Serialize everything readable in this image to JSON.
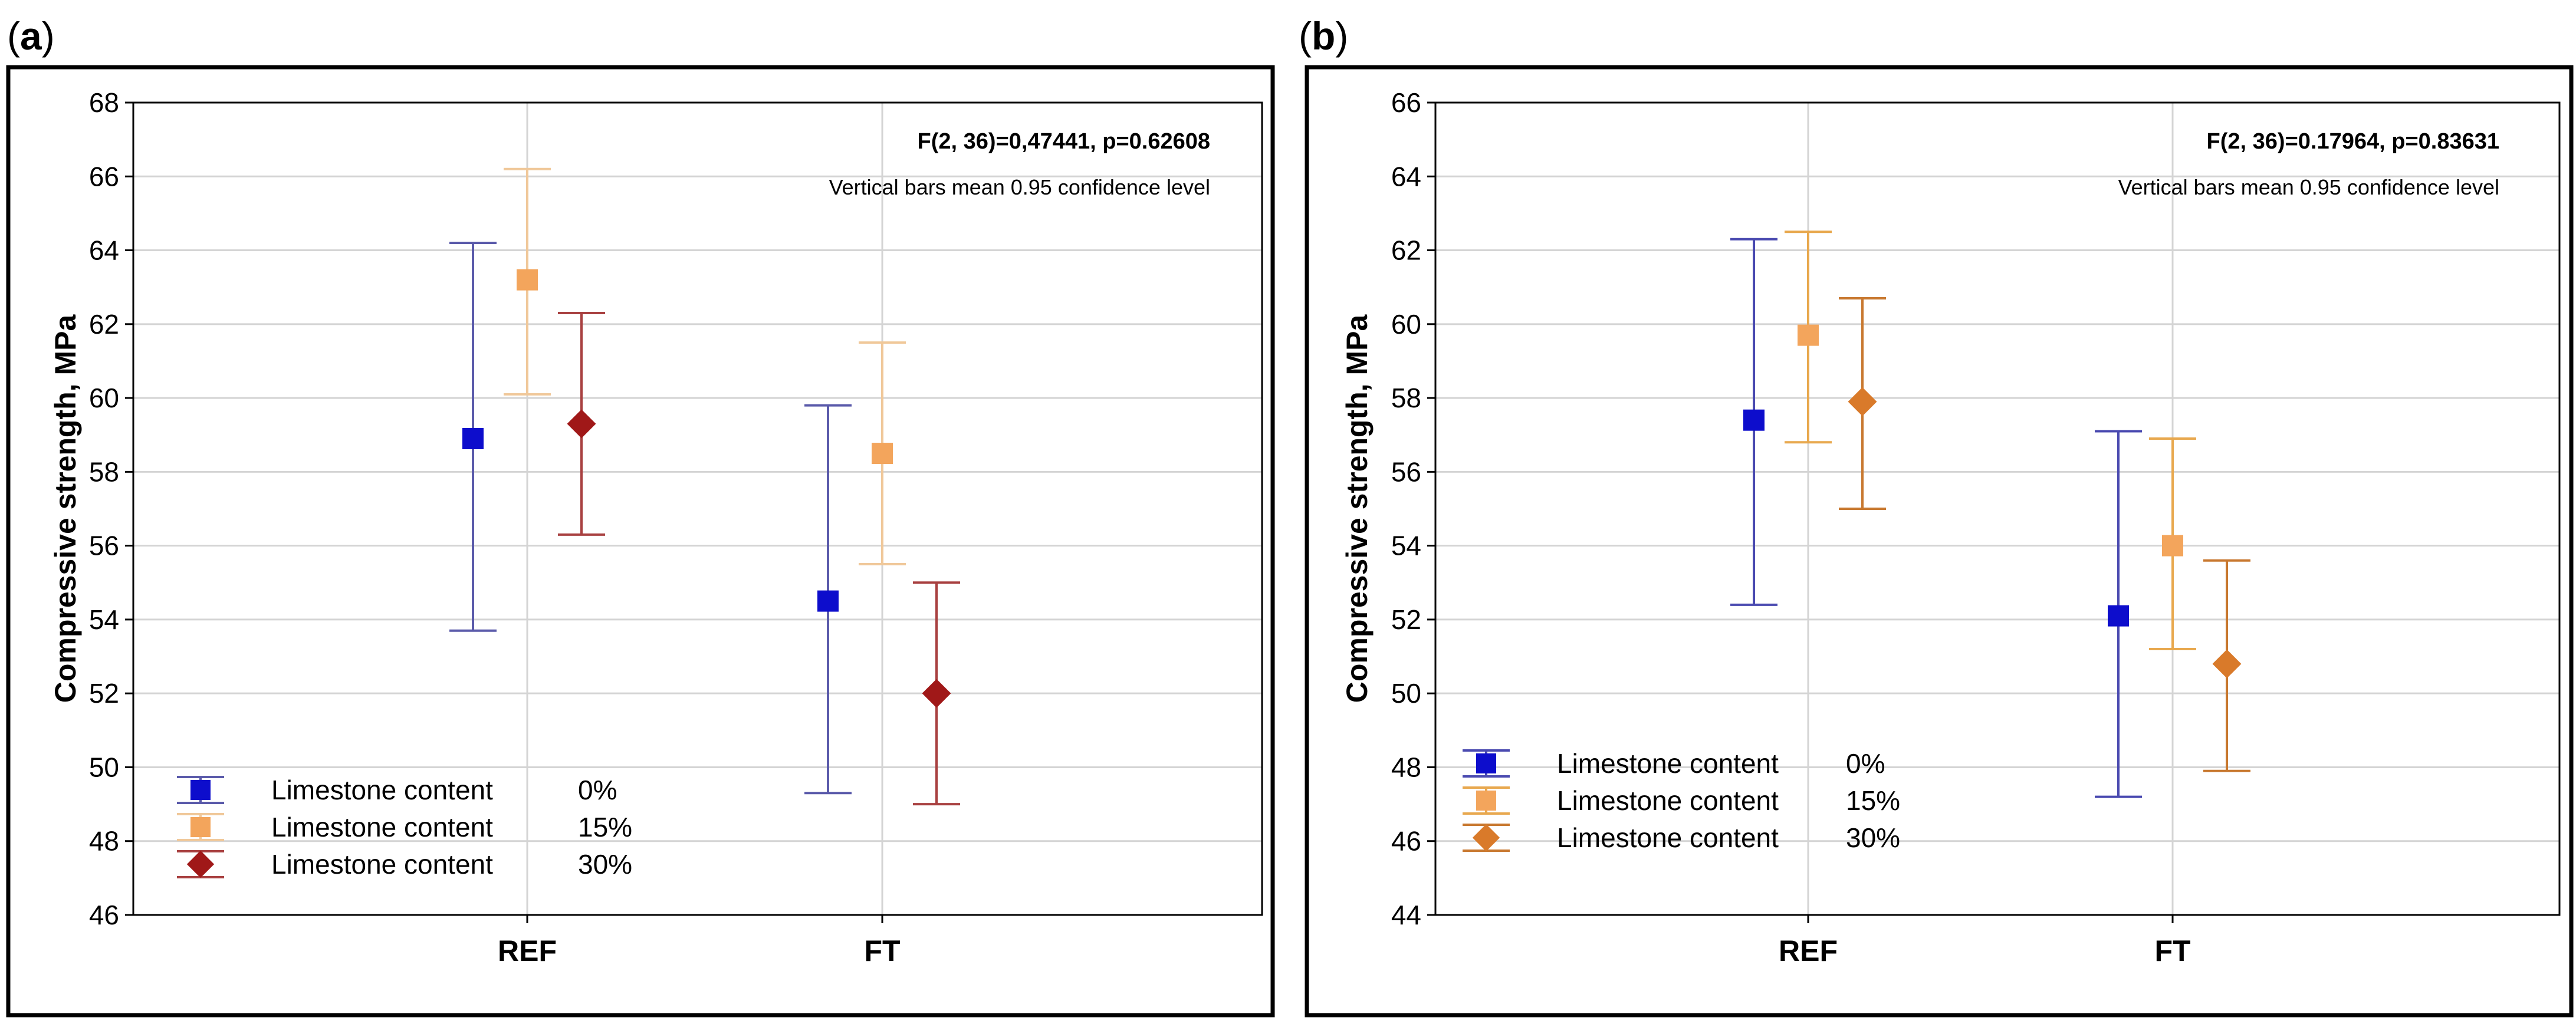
{
  "chart_data": [
    {
      "panel_label": "a",
      "type": "scatter",
      "title": "",
      "xlabel": "",
      "ylabel": "Compressive strength, MPa",
      "categories": [
        "REF",
        "FT"
      ],
      "ylim": [
        46,
        68
      ],
      "yticks": [
        46,
        48,
        50,
        52,
        54,
        56,
        58,
        60,
        62,
        64,
        66,
        68
      ],
      "grid": true,
      "legend_position": "bottom-left",
      "annotations": [
        "F(2, 36)=0,47441, p=0.62608",
        "Vertical bars mean 0.95 confidence level"
      ],
      "series": [
        {
          "name": "Limestone content",
          "level": "0%",
          "color": "#0d0dcc",
          "bar_color": "#5a5aaa",
          "marker": "square",
          "values": [
            58.9,
            54.5
          ],
          "lower": [
            53.7,
            49.3
          ],
          "upper": [
            64.2,
            59.8
          ]
        },
        {
          "name": "Limestone content",
          "level": "15%",
          "color": "#f3a55c",
          "bar_color": "#f0c89a",
          "marker": "square",
          "values": [
            63.2,
            58.5
          ],
          "lower": [
            60.1,
            55.5
          ],
          "upper": [
            66.2,
            61.5
          ]
        },
        {
          "name": "Limestone content",
          "level": "30%",
          "color": "#a01818",
          "bar_color": "#a84040",
          "marker": "diamond",
          "values": [
            59.3,
            52.0
          ],
          "lower": [
            56.3,
            49.0
          ],
          "upper": [
            62.3,
            55.0
          ]
        }
      ]
    },
    {
      "panel_label": "b",
      "type": "scatter",
      "title": "",
      "xlabel": "",
      "ylabel": "Compressive strength, MPa",
      "categories": [
        "REF",
        "FT"
      ],
      "ylim": [
        44,
        66
      ],
      "yticks": [
        44,
        46,
        48,
        50,
        52,
        54,
        56,
        58,
        60,
        62,
        64,
        66
      ],
      "grid": true,
      "legend_position": "bottom-left",
      "annotations": [
        "F(2, 36)=0.17964, p=0.83631",
        "Vertical bars mean 0.95 confidence level"
      ],
      "series": [
        {
          "name": "Limestone content",
          "level": "0%",
          "color": "#0d0dcc",
          "bar_color": "#4a4ab0",
          "marker": "square",
          "values": [
            57.4,
            52.1
          ],
          "lower": [
            52.4,
            47.2
          ],
          "upper": [
            62.3,
            57.1
          ]
        },
        {
          "name": "Limestone content",
          "level": "15%",
          "color": "#f3a55c",
          "bar_color": "#e8a84e",
          "marker": "square",
          "values": [
            59.7,
            54.0
          ],
          "lower": [
            56.8,
            51.2
          ],
          "upper": [
            62.5,
            56.9
          ]
        },
        {
          "name": "Limestone content",
          "level": "30%",
          "color": "#d97a2a",
          "bar_color": "#c8782f",
          "marker": "diamond",
          "values": [
            57.9,
            50.8
          ],
          "lower": [
            55.0,
            47.9
          ],
          "upper": [
            60.7,
            53.6
          ]
        }
      ]
    }
  ]
}
